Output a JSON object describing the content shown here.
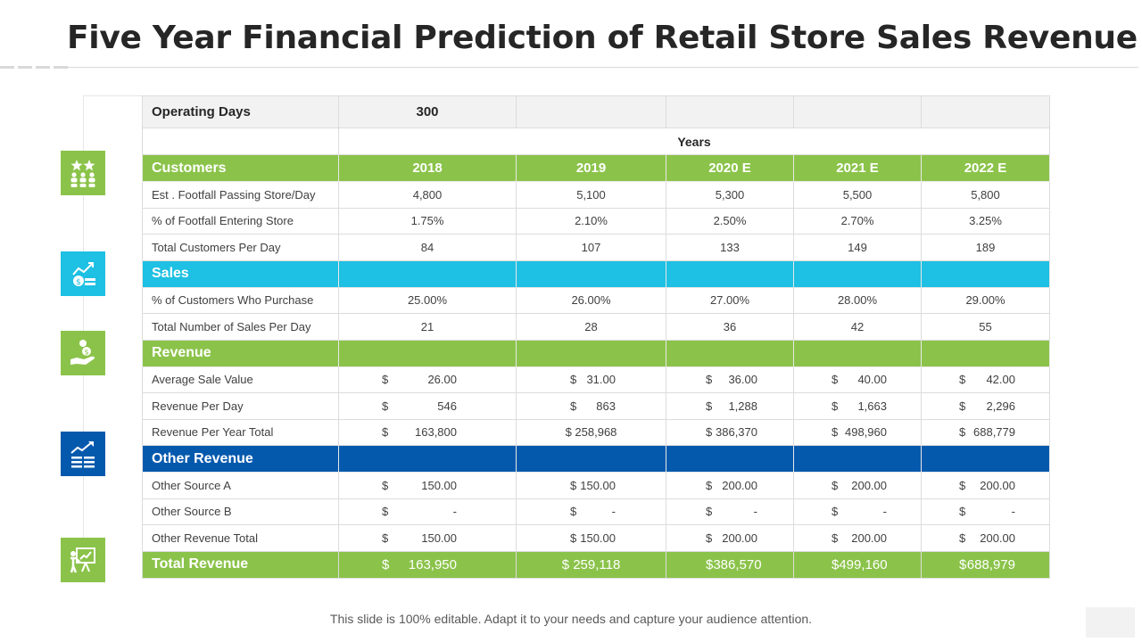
{
  "title": "Five Year Financial Prediction of Retail Store Sales Revenue",
  "footer": "This slide is 100% editable. Adapt it to your needs and capture your audience attention.",
  "colors": {
    "green": "#8bc34a",
    "cyan": "#1ec0e3",
    "blue": "#0559ad"
  },
  "icons": [
    "team-stars-icon",
    "sales-growth-icon",
    "money-hand-icon",
    "revenue-chart-icon",
    "presentation-icon"
  ],
  "operating": {
    "label": "Operating Days",
    "value": "300"
  },
  "years_label": "Years",
  "customers": {
    "label": "Customers",
    "years": [
      "2018",
      "2019",
      "2020 E",
      "2021 E",
      "2022 E"
    ],
    "rows": [
      {
        "label": "Est . Footfall Passing Store/Day",
        "values": [
          "4,800",
          "5,100",
          "5,300",
          "5,500",
          "5,800"
        ]
      },
      {
        "label": "% of Footfall Entering Store",
        "values": [
          "1.75%",
          "2.10%",
          "2.50%",
          "2.70%",
          "3.25%"
        ]
      },
      {
        "label": "Total Customers Per Day",
        "values": [
          "84",
          "107",
          "133",
          "149",
          "189"
        ]
      }
    ]
  },
  "sales": {
    "label": "Sales",
    "rows": [
      {
        "label": "% of Customers Who Purchase",
        "values": [
          "25.00%",
          "26.00%",
          "27.00%",
          "28.00%",
          "29.00%"
        ]
      },
      {
        "label": "Total Number of Sales Per Day",
        "values": [
          "21",
          "28",
          "36",
          "42",
          "55"
        ]
      }
    ]
  },
  "revenue": {
    "label": "Revenue",
    "rows": [
      {
        "label": "Average Sale Value",
        "values": [
          "26.00",
          "31.00",
          "36.00",
          "40.00",
          "42.00"
        ]
      },
      {
        "label": "Revenue Per Day",
        "values": [
          "546",
          "863",
          "1,288",
          "1,663",
          "2,296"
        ]
      },
      {
        "label": "Revenue Per Year Total",
        "values": [
          "163,800",
          "258,968",
          "386,370",
          "498,960",
          "688,779"
        ]
      }
    ]
  },
  "other_revenue": {
    "label": "Other Revenue",
    "rows": [
      {
        "label": "Other Source A",
        "values": [
          "150.00",
          "150.00",
          "200.00",
          "200.00",
          "200.00"
        ]
      },
      {
        "label": "Other Source B",
        "values": [
          "-",
          "-",
          "-",
          "-",
          "-"
        ]
      },
      {
        "label": "Other Revenue Total",
        "values": [
          "150.00",
          "150.00",
          "200.00",
          "200.00",
          "200.00"
        ]
      }
    ]
  },
  "total": {
    "label": "Total Revenue",
    "values": [
      "163,950",
      "259,118",
      "386,570",
      "499,160",
      "688,979"
    ]
  },
  "currency": "$"
}
